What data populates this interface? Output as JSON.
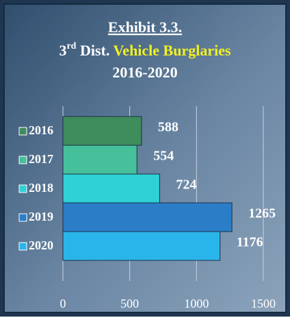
{
  "chart_data": {
    "type": "barh",
    "title": "Exhibit 3.3.",
    "subtitle_parts": [
      "3",
      "rd",
      " Dist. ",
      "Vehicle Burglaries"
    ],
    "subtitle2": "2016-2020",
    "categories": [
      "2016",
      "2017",
      "2018",
      "2019",
      "2020"
    ],
    "values": [
      588,
      554,
      724,
      1265,
      1176
    ],
    "colors": [
      "#3f8c5c",
      "#46bf9b",
      "#2fd1d6",
      "#2b7dc8",
      "#2ab5ea"
    ],
    "xlim": [
      0,
      1500
    ],
    "xticks": [
      0,
      500,
      1000,
      1500
    ],
    "grid": true
  }
}
